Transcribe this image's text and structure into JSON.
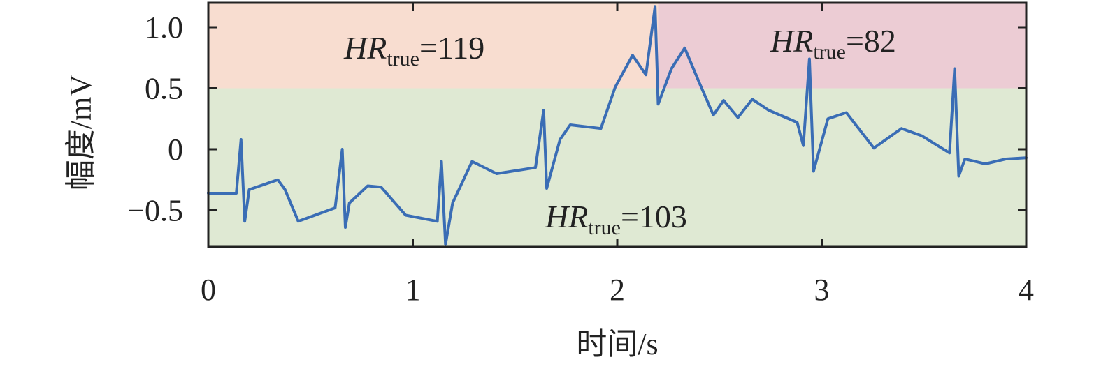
{
  "chart_data": {
    "type": "line",
    "xlabel": "时间/s",
    "ylabel": "幅度/mV",
    "xlim": [
      0,
      4
    ],
    "ylim": [
      -0.8,
      1.2
    ],
    "xticks": [
      0,
      1,
      2,
      3,
      4
    ],
    "yticks": [
      {
        "value": -0.5,
        "label": "−0.5"
      },
      0,
      0.5,
      {
        "value": 1,
        "label": "1.0"
      }
    ],
    "regions": [
      {
        "x": [
          0,
          2.2
        ],
        "y": [
          0.5,
          1.2
        ],
        "color": "#f8ddd0"
      },
      {
        "x": [
          2.2,
          4
        ],
        "y": [
          0.5,
          1.2
        ],
        "color": "#ecccd4"
      },
      {
        "x": [
          0,
          4
        ],
        "y": [
          -0.8,
          0.5
        ],
        "color": "#dfe9d3"
      }
    ],
    "annotations": [
      {
        "text": "HR",
        "subscript": "true",
        "suffix": "=119"
      },
      {
        "text": "HR",
        "subscript": "true",
        "suffix": "=82"
      },
      {
        "text": "HR",
        "subscript": "true",
        "suffix": "=103"
      }
    ],
    "x": [
      0,
      0.137,
      0.16,
      0.178,
      0.2,
      0.34,
      0.375,
      0.44,
      0.62,
      0.655,
      0.67,
      0.69,
      0.78,
      0.845,
      0.965,
      1.12,
      1.14,
      1.16,
      1.195,
      1.29,
      1.41,
      1.6,
      1.64,
      1.655,
      1.72,
      1.77,
      1.92,
      1.99,
      2.075,
      2.14,
      2.185,
      2.2,
      2.265,
      2.33,
      2.4,
      2.47,
      2.52,
      2.59,
      2.66,
      2.74,
      2.88,
      2.91,
      2.94,
      2.96,
      3.03,
      3.12,
      3.255,
      3.39,
      3.49,
      3.625,
      3.65,
      3.67,
      3.7,
      3.8,
      3.9,
      4.0
    ],
    "series": [
      {
        "color": "#3a6db5",
        "values": [
          -0.36,
          -0.36,
          0.08,
          -0.59,
          -0.33,
          -0.25,
          -0.33,
          -0.59,
          -0.48,
          0.0,
          -0.64,
          -0.44,
          -0.3,
          -0.31,
          -0.54,
          -0.59,
          -0.1,
          -0.78,
          -0.44,
          -0.1,
          -0.2,
          -0.15,
          0.32,
          -0.32,
          0.08,
          0.2,
          0.17,
          0.51,
          0.77,
          0.61,
          1.17,
          0.37,
          0.66,
          0.83,
          0.55,
          0.28,
          0.4,
          0.26,
          0.41,
          0.32,
          0.22,
          0.03,
          0.74,
          -0.18,
          0.25,
          0.3,
          0.01,
          0.17,
          0.11,
          -0.03,
          0.66,
          -0.22,
          -0.08,
          -0.12,
          -0.08,
          -0.07
        ]
      }
    ]
  }
}
